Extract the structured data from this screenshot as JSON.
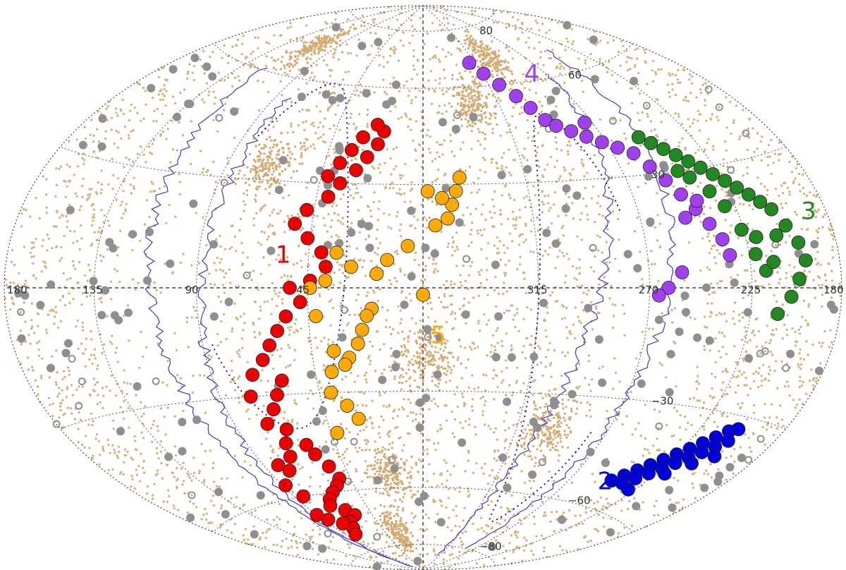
{
  "chart_data": {
    "type": "scatter",
    "projection": "aitoff-hammer all-sky",
    "xlim": [
      180,
      -180
    ],
    "ylim": [
      -90,
      90
    ],
    "grid": true,
    "longitude_tick_labels": [
      {
        "lon": 180,
        "label": "180"
      },
      {
        "lon": 135,
        "label": "135"
      },
      {
        "lon": 90,
        "label": "90"
      },
      {
        "lon": 45,
        "label": "45"
      },
      {
        "lon": -45,
        "label": "315"
      },
      {
        "lon": -90,
        "label": "270"
      },
      {
        "lon": -135,
        "label": "225"
      },
      {
        "lon": -180,
        "label": "180"
      }
    ],
    "latitude_tick_labels": [
      {
        "lat": 80,
        "label": "80"
      },
      {
        "lat": 60,
        "label": "60"
      },
      {
        "lat": 30,
        "label": "30"
      },
      {
        "lat": -30,
        "label": "−30"
      },
      {
        "lat": -60,
        "label": "−60"
      },
      {
        "lat": -80,
        "label": "−80"
      }
    ],
    "groups": [
      {
        "label": "1",
        "color": "#ee0000",
        "label_lon": 58,
        "label_lat": 7,
        "points": [
          [
            60,
            -45
          ],
          [
            58,
            -48
          ],
          [
            54,
            -52
          ],
          [
            52,
            -56
          ],
          [
            56,
            -58
          ],
          [
            62,
            -60
          ],
          [
            68,
            -62
          ],
          [
            72,
            -64
          ],
          [
            64,
            -66
          ],
          [
            60,
            -68
          ],
          [
            70,
            -70
          ],
          [
            74,
            -72
          ],
          [
            80,
            -74
          ],
          [
            78,
            -70
          ],
          [
            86,
            -68
          ],
          [
            90,
            -66
          ],
          [
            84,
            -60
          ],
          [
            88,
            -56
          ],
          [
            78,
            -52
          ],
          [
            82,
            -50
          ],
          [
            72,
            -48
          ],
          [
            70,
            -44
          ],
          [
            66,
            -40
          ],
          [
            74,
            -38
          ],
          [
            68,
            -34
          ],
          [
            64,
            -30
          ],
          [
            60,
            -26
          ],
          [
            76,
            -30
          ],
          [
            72,
            -24
          ],
          [
            66,
            -20
          ],
          [
            62,
            -16
          ],
          [
            58,
            -12
          ],
          [
            54,
            -8
          ],
          [
            48,
            -4
          ],
          [
            52,
            0
          ],
          [
            44,
            2
          ],
          [
            38,
            6
          ],
          [
            40,
            10
          ],
          [
            46,
            14
          ],
          [
            52,
            18
          ],
          [
            48,
            22
          ],
          [
            40,
            26
          ],
          [
            36,
            30
          ],
          [
            30,
            34
          ],
          [
            26,
            38
          ],
          [
            22,
            42
          ],
          [
            20,
            46
          ],
          [
            24,
            48
          ],
          [
            30,
            44
          ],
          [
            34,
            40
          ],
          [
            38,
            36
          ],
          [
            42,
            32
          ]
        ]
      },
      {
        "label": "2",
        "color": "#0000dd",
        "label_lon": -113,
        "label_lat": -55,
        "points": [
          [
            -115,
            -52
          ],
          [
            -119,
            -50
          ],
          [
            -123,
            -48
          ],
          [
            -127,
            -46
          ],
          [
            -131,
            -44
          ],
          [
            -135,
            -42
          ],
          [
            -139,
            -40
          ],
          [
            -143,
            -38
          ],
          [
            -147,
            -36
          ],
          [
            -151,
            -34
          ],
          [
            -155,
            -33
          ],
          [
            -123,
            -52
          ],
          [
            -127,
            -50
          ],
          [
            -131,
            -48
          ],
          [
            -135,
            -46
          ],
          [
            -139,
            -44
          ],
          [
            -143,
            -42
          ],
          [
            -147,
            -40
          ],
          [
            -151,
            -38
          ],
          [
            -155,
            -36
          ],
          [
            -131,
            -53
          ],
          [
            -140,
            -47
          ],
          [
            -148,
            -43
          ],
          [
            -156,
            -40
          ]
        ]
      },
      {
        "label": "3",
        "color": "#228822",
        "label_lon": -165,
        "label_lat": 15,
        "points": [
          [
            -108,
            40
          ],
          [
            -112,
            38
          ],
          [
            -116,
            36
          ],
          [
            -120,
            34
          ],
          [
            -124,
            32
          ],
          [
            -128,
            30
          ],
          [
            -132,
            28
          ],
          [
            -136,
            26
          ],
          [
            -140,
            24
          ],
          [
            -144,
            22
          ],
          [
            -148,
            20
          ],
          [
            -152,
            18
          ],
          [
            -156,
            14
          ],
          [
            -160,
            10
          ],
          [
            -162,
            6
          ],
          [
            -158,
            2
          ],
          [
            -154,
            -2
          ],
          [
            -148,
            -6
          ],
          [
            -142,
            4
          ],
          [
            -138,
            8
          ],
          [
            -134,
            14
          ],
          [
            -130,
            20
          ],
          [
            -126,
            24
          ],
          [
            -120,
            28
          ],
          [
            -116,
            30
          ],
          [
            -150,
            12
          ],
          [
            -146,
            6
          ],
          [
            -140,
            12
          ]
        ]
      },
      {
        "label": "4",
        "color": "#a040f0",
        "label_lon": -70,
        "label_lat": 60,
        "points": [
          [
            -40,
            68
          ],
          [
            -46,
            64
          ],
          [
            -52,
            60
          ],
          [
            -58,
            56
          ],
          [
            -62,
            52
          ],
          [
            -66,
            48
          ],
          [
            -70,
            46
          ],
          [
            -76,
            44
          ],
          [
            -82,
            42
          ],
          [
            -88,
            40
          ],
          [
            -94,
            38
          ],
          [
            -100,
            36
          ],
          [
            -104,
            32
          ],
          [
            -108,
            28
          ],
          [
            -112,
            24
          ],
          [
            -116,
            20
          ],
          [
            -120,
            16
          ],
          [
            -124,
            12
          ],
          [
            -126,
            8
          ],
          [
            -104,
            4
          ],
          [
            -98,
            0
          ],
          [
            -94,
            -2
          ],
          [
            -118,
            22
          ],
          [
            -110,
            18
          ],
          [
            -86,
            46
          ]
        ]
      },
      {
        "label": "5",
        "color": "#ffaa00",
        "label_lon": -3,
        "label_lat": -16,
        "points": [
          [
            -5,
            18
          ],
          [
            -10,
            20
          ],
          [
            -12,
            24
          ],
          [
            -14,
            28
          ],
          [
            -16,
            32
          ],
          [
            -8,
            26
          ],
          [
            -2,
            28
          ],
          [
            0,
            -2
          ],
          [
            6,
            12
          ],
          [
            14,
            8
          ],
          [
            18,
            4
          ],
          [
            20,
            -6
          ],
          [
            24,
            -12
          ],
          [
            26,
            -16
          ],
          [
            30,
            -20
          ],
          [
            32,
            -22
          ],
          [
            36,
            -18
          ],
          [
            38,
            -24
          ],
          [
            40,
            -30
          ],
          [
            34,
            -34
          ],
          [
            30,
            -38
          ],
          [
            42,
            -42
          ],
          [
            22,
            -8
          ],
          [
            28,
            6
          ],
          [
            34,
            10
          ],
          [
            38,
            2
          ],
          [
            42,
            -8
          ],
          [
            44,
            0
          ]
        ]
      }
    ]
  }
}
